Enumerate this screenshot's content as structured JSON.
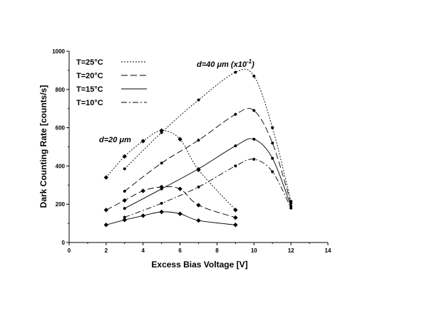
{
  "chart_data": {
    "type": "line",
    "title": "",
    "xlabel": "Excess Bias Voltage [V]",
    "ylabel": "Dark Counting Rate [counts/s]",
    "xlim": [
      0,
      14
    ],
    "ylim": [
      0,
      1000
    ],
    "x_ticks": [
      "0",
      "2",
      "4",
      "6",
      "8",
      "10",
      "12",
      "14"
    ],
    "y_ticks": [
      "0",
      "200",
      "400",
      "600",
      "800",
      "1000"
    ],
    "grid": false,
    "legend_position": "top-left",
    "legend": [
      {
        "label": "T=25°C",
        "dash": "dotted"
      },
      {
        "label": "T=20°C",
        "dash": "long-dash"
      },
      {
        "label": "T=15°C",
        "dash": "solid"
      },
      {
        "label": "T=10°C",
        "dash": "dash-dot"
      }
    ],
    "annotations": [
      {
        "text_main": "d=40",
        "unit": "μm",
        "suffix_pre": " (x10",
        "exponent": "-1",
        "suffix_post": ")"
      },
      {
        "text_main": "d=20",
        "unit": "μm",
        "suffix_pre": "",
        "exponent": "",
        "suffix_post": ""
      }
    ],
    "series": [
      {
        "group": "d=20 μm",
        "legend_index": 0,
        "marker": "diamond",
        "points": [
          [
            2,
            340
          ],
          [
            3,
            450
          ],
          [
            4,
            530
          ],
          [
            5,
            585
          ],
          [
            6,
            540
          ],
          [
            7,
            380
          ],
          [
            9,
            170
          ]
        ]
      },
      {
        "group": "d=20 μm",
        "legend_index": 1,
        "marker": "diamond",
        "points": [
          [
            2,
            170
          ],
          [
            3,
            220
          ],
          [
            4,
            270
          ],
          [
            5,
            290
          ],
          [
            6,
            280
          ],
          [
            7,
            195
          ],
          [
            9,
            130
          ]
        ]
      },
      {
        "group": "d=20 μm",
        "legend_index": 2,
        "marker": "diamond",
        "points": [
          [
            2,
            92
          ],
          [
            3,
            118
          ],
          [
            4,
            140
          ],
          [
            5,
            160
          ],
          [
            6,
            150
          ],
          [
            7,
            115
          ],
          [
            9,
            92
          ]
        ]
      },
      {
        "group": "d=40 μm (x10^-1)",
        "legend_index": 0,
        "marker": "dot",
        "points": [
          [
            3,
            385
          ],
          [
            5,
            575
          ],
          [
            7,
            745
          ],
          [
            9,
            890
          ],
          [
            10,
            870
          ],
          [
            11,
            600
          ],
          [
            12,
            215
          ]
        ]
      },
      {
        "group": "d=40 μm (x10^-1)",
        "legend_index": 1,
        "marker": "dot",
        "points": [
          [
            3,
            268
          ],
          [
            5,
            415
          ],
          [
            7,
            535
          ],
          [
            9,
            670
          ],
          [
            10,
            690
          ],
          [
            11,
            520
          ],
          [
            12,
            205
          ]
        ]
      },
      {
        "group": "d=40 μm (x10^-1)",
        "legend_index": 2,
        "marker": "dot",
        "points": [
          [
            3,
            178
          ],
          [
            5,
            280
          ],
          [
            7,
            385
          ],
          [
            9,
            505
          ],
          [
            10,
            540
          ],
          [
            11,
            440
          ],
          [
            12,
            190
          ]
        ]
      },
      {
        "group": "d=40 μm (x10^-1)",
        "legend_index": 3,
        "marker": "dot",
        "points": [
          [
            3,
            132
          ],
          [
            5,
            205
          ],
          [
            7,
            290
          ],
          [
            9,
            400
          ],
          [
            10,
            435
          ],
          [
            11,
            370
          ],
          [
            12,
            180
          ]
        ]
      }
    ]
  }
}
